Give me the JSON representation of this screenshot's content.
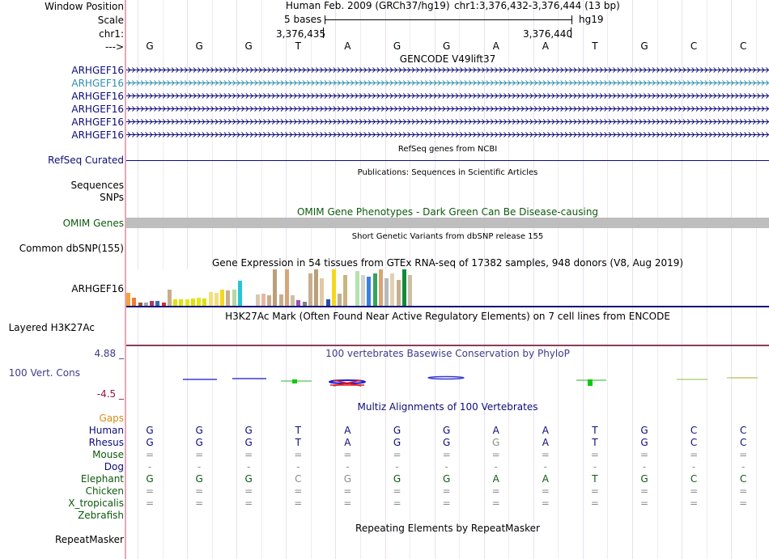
{
  "header": {
    "assembly": "Human Feb. 2009 (GRCh37/hg19)",
    "position": "chr1:3,376,432-3,376,444 (13 bp)",
    "scale_text": "5 bases",
    "db": "hg19",
    "coord_left": "3,376,435",
    "coord_right": "3,376,440",
    "arrow_label": "--->"
  },
  "labels": {
    "window_position": "Window Position",
    "scale": "Scale",
    "chr": "chr1:",
    "arrow": "--->",
    "refseq": "RefSeq Curated",
    "sequences": "Sequences",
    "snps": "SNPs",
    "omim": "OMIM Genes",
    "dbsnp": "Common dbSNP(155)",
    "gtex_gene": "ARHGEF16",
    "h3k27": "Layered H3K27Ac",
    "cons_max": "4.88 _",
    "cons_label": "100 Vert. Cons",
    "cons_min": "-4.5 _",
    "gaps": "Gaps",
    "repeatmasker": "RepeatMasker"
  },
  "bases": [
    "G",
    "G",
    "G",
    "T",
    "A",
    "G",
    "G",
    "A",
    "A",
    "T",
    "G",
    "C",
    "C"
  ],
  "gencode": {
    "title": "GENCODE V49lift37",
    "transcripts": [
      {
        "label": "ARHGEF16",
        "color": "#0c0c78"
      },
      {
        "label": "ARHGEF16",
        "color": "#2d8fb0"
      },
      {
        "label": "ARHGEF16",
        "color": "#0c0c78"
      },
      {
        "label": "ARHGEF16",
        "color": "#0c0c78"
      },
      {
        "label": "ARHGEF16",
        "color": "#0c0c78"
      },
      {
        "label": "ARHGEF16",
        "color": "#0c0c78"
      }
    ]
  },
  "track_titles": {
    "refseq": "RefSeq genes from NCBI",
    "publications": "Publications: Sequences in Scientific Articles",
    "omim": "OMIM Gene Phenotypes - Dark Green Can Be Disease-causing",
    "dbsnp": "Short Genetic Variants from dbSNP release 155",
    "gtex": "Gene Expression in 54 tissues from GTEx RNA-seq of 17382 samples, 948 donors (V8, Aug 2019)",
    "h3k27": "H3K27Ac Mark (Often Found Near Active Regulatory Elements) on 7 cell lines from ENCODE",
    "phylop": "100 vertebrates Basewise Conservation by PhyloP",
    "multiz": "Multiz Alignments of 100 Vertebrates",
    "repeatmasker": "Repeating Elements by RepeatMasker"
  },
  "gtex_bars": [
    {
      "v": 0.35,
      "c": "#f2a33a"
    },
    {
      "v": 0.22,
      "c": "#f07b36"
    },
    {
      "v": 0.1,
      "c": "#8b5a3c"
    },
    {
      "v": 0.08,
      "c": "#a6a6a6"
    },
    {
      "v": 0.14,
      "c": "#ab3a6c"
    },
    {
      "v": 0.14,
      "c": "#3a6ab5"
    },
    {
      "v": 0.08,
      "c": "#d12b3c"
    },
    {
      "v": 0.45,
      "c": "#c8ae8f"
    },
    {
      "v": 0.18,
      "c": "#e0e010"
    },
    {
      "v": 0.18,
      "c": "#e0e010"
    },
    {
      "v": 0.18,
      "c": "#e6e61a"
    },
    {
      "v": 0.2,
      "c": "#e0e010"
    },
    {
      "v": 0.22,
      "c": "#e6e61a"
    },
    {
      "v": 0.2,
      "c": "#e0e010"
    },
    {
      "v": 0.38,
      "c": "#f3e07a"
    },
    {
      "v": 0.36,
      "c": "#f3e07a"
    },
    {
      "v": 0.45,
      "c": "#f3d81f"
    },
    {
      "v": 0.42,
      "c": "#c8ae8f"
    },
    {
      "v": 0.45,
      "c": "#b5d8a0"
    },
    {
      "v": 0.7,
      "c": "#24c6d6"
    },
    {
      "v": 0.0,
      "c": "#ffffff"
    },
    {
      "v": 0.0,
      "c": "#ffffff"
    },
    {
      "v": 0.32,
      "c": "#d7c9b0"
    },
    {
      "v": 0.34,
      "c": "#e8b6a3"
    },
    {
      "v": 0.3,
      "c": "#c8ae8f"
    },
    {
      "v": 1.0,
      "c": "#b8a079"
    },
    {
      "v": 0.32,
      "c": "#c8ae8f"
    },
    {
      "v": 1.0,
      "c": "#d6a67a"
    },
    {
      "v": 0.3,
      "c": "#ccbfa5"
    },
    {
      "v": 0.15,
      "c": "#9a4fb5"
    },
    {
      "v": 0.12,
      "c": "#7f7f7f"
    },
    {
      "v": 0.9,
      "c": "#c8ae8f"
    },
    {
      "v": 1.0,
      "c": "#b8a079"
    },
    {
      "v": 0.75,
      "c": "#e0c8a6"
    },
    {
      "v": 0.18,
      "c": "#2d4fa3"
    },
    {
      "v": 1.0,
      "c": "#f3d81f"
    },
    {
      "v": 0.34,
      "c": "#c8ae8f"
    },
    {
      "v": 0.85,
      "c": "#c9b57e"
    },
    {
      "v": 0.0,
      "c": "#ffffff"
    },
    {
      "v": 0.95,
      "c": "#b5e3b0"
    },
    {
      "v": 0.85,
      "c": "#d1d1d1"
    },
    {
      "v": 0.8,
      "c": "#3a7fe0"
    },
    {
      "v": 0.9,
      "c": "#34a55c"
    },
    {
      "v": 1.0,
      "c": "#d6a67a"
    },
    {
      "v": 0.75,
      "c": "#b9b9b9"
    },
    {
      "v": 0.9,
      "c": "#ded1b3"
    },
    {
      "v": 0.72,
      "c": "#c8ae8f"
    },
    {
      "v": 1.0,
      "c": "#128a3c"
    },
    {
      "v": 0.85,
      "c": "#ccbfa5"
    },
    {
      "v": 0.1,
      "c": "#ffffff"
    }
  ],
  "alignment": [
    {
      "species": "Human",
      "color": "#0c0c78",
      "bases": [
        "G",
        "G",
        "G",
        "T",
        "A",
        "G",
        "G",
        "A",
        "A",
        "T",
        "G",
        "C",
        "C"
      ],
      "dim": []
    },
    {
      "species": "Rhesus",
      "color": "#0c0c78",
      "bases": [
        "G",
        "G",
        "G",
        "T",
        "A",
        "G",
        "G",
        "G",
        "A",
        "T",
        "G",
        "C",
        "C"
      ],
      "dim": [
        7
      ]
    },
    {
      "species": "Mouse",
      "color": "#0c5a0c",
      "bases": [
        "=",
        "=",
        "=",
        "=",
        "=",
        "=",
        "=",
        "=",
        "=",
        "=",
        "=",
        "=",
        "="
      ],
      "dim": []
    },
    {
      "species": "Dog",
      "color": "#0c0c78",
      "bases": [
        "-",
        "-",
        "-",
        "-",
        "-",
        "-",
        "-",
        "-",
        "-",
        "-",
        "-",
        "-",
        "-"
      ],
      "dim": []
    },
    {
      "species": "Elephant",
      "color": "#0c5a0c",
      "bases": [
        "G",
        "G",
        "G",
        "C",
        "G",
        "G",
        "G",
        "A",
        "A",
        "T",
        "G",
        "C",
        "C"
      ],
      "dim": [
        3,
        4
      ]
    },
    {
      "species": "Chicken",
      "color": "#0c5a0c",
      "bases": [
        "=",
        "=",
        "=",
        "=",
        "=",
        "=",
        "=",
        "=",
        "=",
        "=",
        "=",
        "=",
        "="
      ],
      "dim": []
    },
    {
      "species": "X_tropicalis",
      "color": "#0c5a0c",
      "bases": [
        "=",
        "=",
        "=",
        "=",
        "=",
        "=",
        "=",
        "=",
        "=",
        "=",
        "=",
        "=",
        "="
      ],
      "dim": []
    },
    {
      "species": "Zebrafish",
      "color": "#0c5a0c",
      "bases": [
        "",
        "",
        "",
        "",
        "",
        "",
        "",
        "",
        "",
        "",
        "",
        "",
        ""
      ],
      "dim": []
    }
  ],
  "colors": {
    "gencode": "#0c0c78",
    "refseq": "#0c0c78",
    "omim_label": "#0c5a0c",
    "omim_bar": "#bebebe",
    "phylop": "#3c3c8c",
    "multiz": "#0c0c78",
    "gaps": "#d98c1a",
    "cons_axis": "#3c3c8c",
    "h3k27_line": "#8c3c5a"
  }
}
